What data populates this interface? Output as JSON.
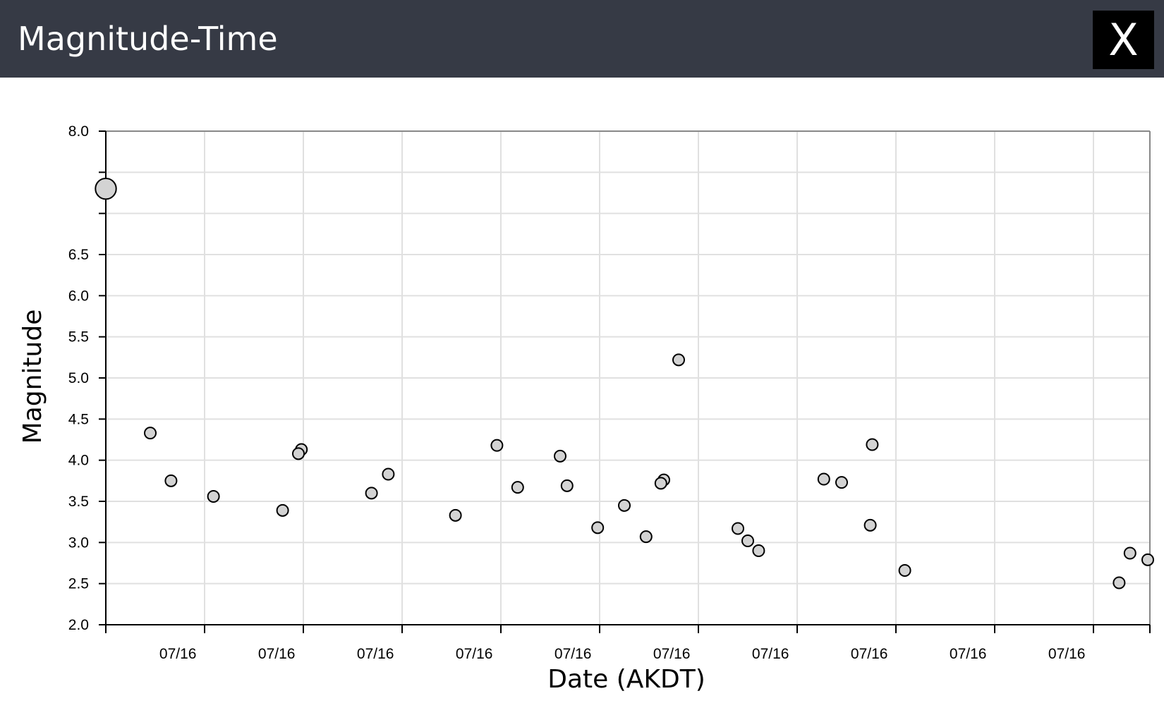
{
  "window": {
    "title": "Magnitude-Time",
    "close_label": "X"
  },
  "chart_data": {
    "type": "scatter",
    "xlabel": "Date (AKDT)",
    "ylabel": "Magnitude",
    "ylim": [
      2.0,
      8.0
    ],
    "y_ticks": [
      "2.0",
      "2.5",
      "3.0",
      "3.5",
      "4.0",
      "4.5",
      "5.0",
      "5.5",
      "6.0",
      "6.5",
      "7.0",
      "7.5",
      "8.0"
    ],
    "y_tick_labels_shown": [
      "2.0",
      "2.5",
      "3.0",
      "3.5",
      "4.0",
      "4.5",
      "5.0",
      "5.5",
      "6.0",
      "6.5",
      "8.0"
    ],
    "x_tick_labels": [
      "07/16",
      "07/16",
      "07/16",
      "07/16",
      "07/16",
      "07/16",
      "07/16",
      "07/16",
      "07/16",
      "07/16"
    ],
    "x_tick_count": 11,
    "grid": true,
    "marker_fill": "#d3d3d3",
    "marker_stroke": "#000000",
    "grid_color": "#e0e0e0",
    "note_size": "marker size scales with magnitude",
    "points": [
      {
        "x": 0.0,
        "y": 7.3
      },
      {
        "x": 0.45,
        "y": 4.33
      },
      {
        "x": 0.66,
        "y": 3.75
      },
      {
        "x": 1.09,
        "y": 3.56
      },
      {
        "x": 1.79,
        "y": 3.39
      },
      {
        "x": 1.95,
        "y": 4.08
      },
      {
        "x": 1.98,
        "y": 4.13
      },
      {
        "x": 2.69,
        "y": 3.6
      },
      {
        "x": 2.86,
        "y": 3.83
      },
      {
        "x": 3.54,
        "y": 3.33
      },
      {
        "x": 3.96,
        "y": 4.18
      },
      {
        "x": 4.17,
        "y": 3.67
      },
      {
        "x": 4.6,
        "y": 4.05
      },
      {
        "x": 4.67,
        "y": 3.69
      },
      {
        "x": 4.98,
        "y": 3.18
      },
      {
        "x": 5.25,
        "y": 3.45
      },
      {
        "x": 5.47,
        "y": 3.07
      },
      {
        "x": 5.62,
        "y": 3.72
      },
      {
        "x": 5.65,
        "y": 3.76
      },
      {
        "x": 5.8,
        "y": 5.22
      },
      {
        "x": 6.4,
        "y": 3.17
      },
      {
        "x": 6.5,
        "y": 3.02
      },
      {
        "x": 6.61,
        "y": 2.9
      },
      {
        "x": 7.27,
        "y": 3.77
      },
      {
        "x": 7.45,
        "y": 3.73
      },
      {
        "x": 7.74,
        "y": 3.21
      },
      {
        "x": 7.76,
        "y": 4.19
      },
      {
        "x": 8.09,
        "y": 2.66
      },
      {
        "x": 10.26,
        "y": 2.51
      },
      {
        "x": 10.37,
        "y": 2.87
      },
      {
        "x": 10.55,
        "y": 2.79
      }
    ]
  }
}
